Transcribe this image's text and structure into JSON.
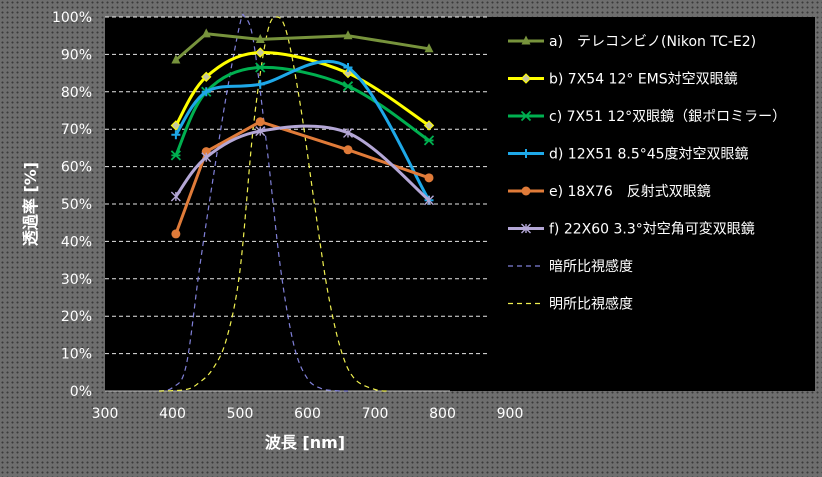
{
  "chart_data": {
    "type": "line",
    "xlabel": "波長 [nm]",
    "ylabel": "透過率 [%]",
    "xlim": [
      300,
      900
    ],
    "ylim": [
      0,
      100
    ],
    "x_ticks": [
      300,
      400,
      500,
      600,
      700,
      800,
      900
    ],
    "y_ticks": [
      0,
      10,
      20,
      30,
      40,
      50,
      60,
      70,
      80,
      90,
      100
    ],
    "y_tick_suffix": "%",
    "grid": "horizontal-dashed",
    "legend_position": "right",
    "series": [
      {
        "name": "a)　テレコンビノ(Nikon TC-E2)",
        "color": "#77933c",
        "marker": "triangle",
        "smooth": false,
        "points": [
          [
            405,
            88.5
          ],
          [
            450,
            95.5
          ],
          [
            530,
            94
          ],
          [
            660,
            95
          ],
          [
            780,
            91.5
          ]
        ]
      },
      {
        "name": "b) 7X54 12° EMS対空双眼鏡",
        "color": "#ffff00",
        "marker": "diamond",
        "smooth": true,
        "points": [
          [
            405,
            71
          ],
          [
            450,
            84
          ],
          [
            530,
            90.5
          ],
          [
            660,
            85
          ],
          [
            780,
            71
          ]
        ]
      },
      {
        "name": "c) 7X51 12°双眼鏡（銀ポロミラー）",
        "color": "#00b050",
        "marker": "star",
        "smooth": true,
        "points": [
          [
            405,
            63
          ],
          [
            450,
            80
          ],
          [
            530,
            86.5
          ],
          [
            660,
            81.5
          ],
          [
            780,
            67
          ]
        ]
      },
      {
        "name": "d) 12X51  8.5°45度対空双眼鏡",
        "color": "#1ea8e8",
        "marker": "plus",
        "smooth": true,
        "points": [
          [
            405,
            68.5
          ],
          [
            450,
            80
          ],
          [
            530,
            82
          ],
          [
            660,
            86.5
          ],
          [
            780,
            51
          ]
        ]
      },
      {
        "name": "e) 18X76　反射式双眼鏡",
        "color": "#e07b39",
        "marker": "circle",
        "smooth": false,
        "points": [
          [
            405,
            42
          ],
          [
            450,
            64
          ],
          [
            530,
            72
          ],
          [
            660,
            64.5
          ],
          [
            780,
            57
          ]
        ]
      },
      {
        "name": "f) 22X60 3.3°対空角可変双眼鏡",
        "color": "#b4a7d6",
        "marker": "asterisk",
        "smooth": true,
        "points": [
          [
            405,
            52
          ],
          [
            450,
            62.5
          ],
          [
            530,
            69.5
          ],
          [
            660,
            69
          ],
          [
            780,
            51
          ]
        ]
      },
      {
        "name": "暗所比視感度",
        "color": "#8080d8",
        "dashed": true,
        "smooth": true,
        "marker": "none",
        "points": [
          [
            380,
            0
          ],
          [
            400,
            0.9
          ],
          [
            420,
            6.6
          ],
          [
            440,
            32.8
          ],
          [
            460,
            56.7
          ],
          [
            480,
            79.3
          ],
          [
            500,
            98.2
          ],
          [
            507,
            100
          ],
          [
            520,
            93.5
          ],
          [
            540,
            65
          ],
          [
            560,
            32.9
          ],
          [
            580,
            12.1
          ],
          [
            600,
            3.3
          ],
          [
            620,
            0.7
          ],
          [
            640,
            0.1
          ],
          [
            660,
            0
          ]
        ]
      },
      {
        "name": "明所比視感度",
        "color": "#f0f050",
        "dashed": true,
        "smooth": true,
        "marker": "none",
        "points": [
          [
            380,
            0
          ],
          [
            420,
            0.4
          ],
          [
            440,
            2.3
          ],
          [
            460,
            6
          ],
          [
            480,
            13.9
          ],
          [
            500,
            32.3
          ],
          [
            520,
            71
          ],
          [
            540,
            95.4
          ],
          [
            555,
            100
          ],
          [
            570,
            95.2
          ],
          [
            590,
            75.7
          ],
          [
            610,
            50.3
          ],
          [
            630,
            26.5
          ],
          [
            650,
            10.7
          ],
          [
            670,
            3.2
          ],
          [
            700,
            0.4
          ],
          [
            720,
            0
          ]
        ]
      }
    ]
  }
}
